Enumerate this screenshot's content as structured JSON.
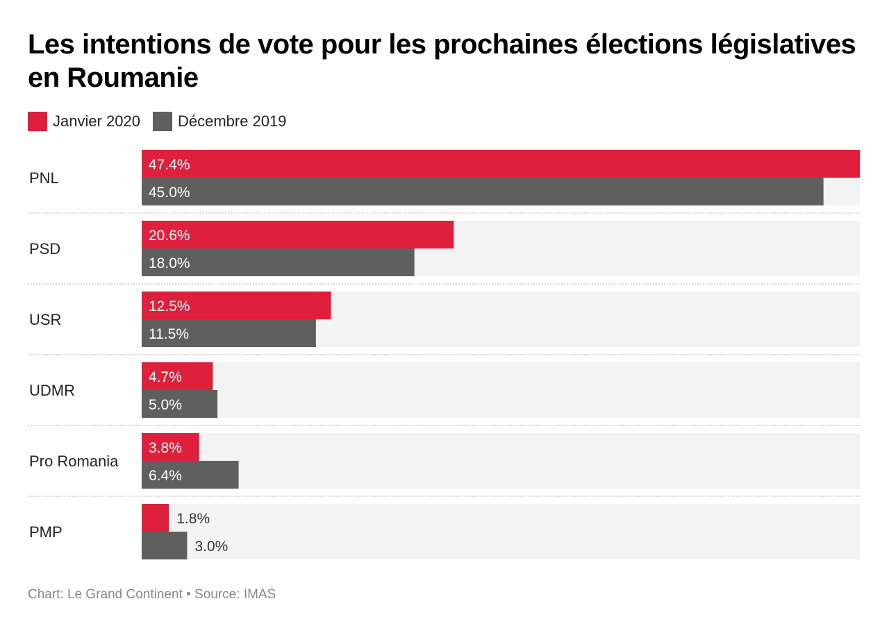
{
  "chart_data": {
    "type": "bar",
    "orientation": "horizontal",
    "title": "Les intentions de vote pour les prochaines élections législatives en Roumanie",
    "categories": [
      "PNL",
      "PSD",
      "USR",
      "UDMR",
      "Pro Romania",
      "PMP"
    ],
    "series": [
      {
        "name": "Janvier 2020",
        "color": "#df203d",
        "values": [
          47.4,
          20.6,
          12.5,
          4.7,
          3.8,
          1.8
        ]
      },
      {
        "name": "Décembre 2019",
        "color": "#5f5f5f",
        "values": [
          45.0,
          18.0,
          11.5,
          5.0,
          6.4,
          3.0
        ]
      }
    ],
    "xlim": [
      0,
      47.4
    ],
    "value_format": "percent, 1 decimal",
    "legend": "top-left",
    "grid": false
  },
  "footer": "Chart: Le Grand Continent • Source: IMAS"
}
